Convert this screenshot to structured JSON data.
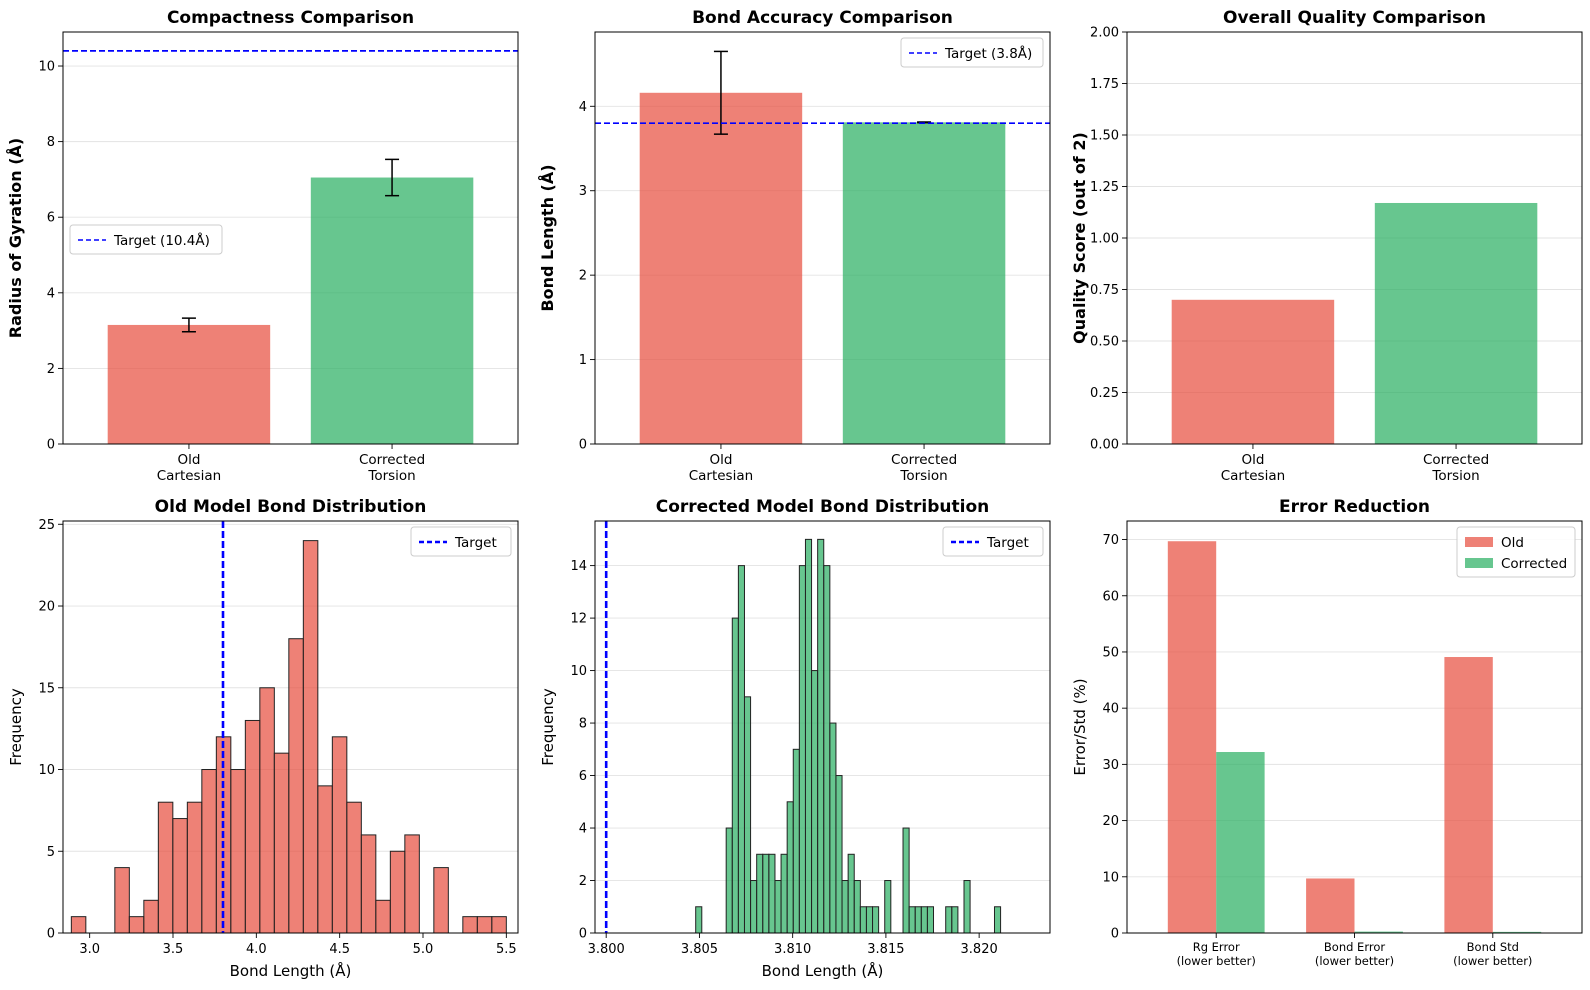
{
  "colors": {
    "old": "#e74c3c",
    "corrected": "#27ae60",
    "target": "#0000ff"
  },
  "chart_data": [
    {
      "id": "compactness",
      "type": "bar",
      "title": "Compactness Comparison",
      "ylabel": "Radius of Gyration (Å)",
      "xlabel": "",
      "categories": [
        [
          "Old",
          "Cartesian"
        ],
        [
          "Corrected",
          "Torsion"
        ]
      ],
      "values": [
        3.15,
        7.05
      ],
      "errors": [
        0.18,
        0.48
      ],
      "ylim": [
        0,
        10.9
      ],
      "yticks": [
        0,
        2,
        4,
        6,
        8,
        10
      ],
      "target": {
        "value": 10.4,
        "label": "Target (10.4Å)"
      },
      "legend": "center-left"
    },
    {
      "id": "bond-accuracy",
      "type": "bar",
      "title": "Bond Accuracy Comparison",
      "ylabel": "Bond Length (Å)",
      "xlabel": "",
      "categories": [
        [
          "Old",
          "Cartesian"
        ],
        [
          "Corrected",
          "Torsion"
        ]
      ],
      "values": [
        4.16,
        3.81
      ],
      "errors": [
        0.49,
        0.004
      ],
      "ylim": [
        0,
        4.88
      ],
      "yticks": [
        0,
        1,
        2,
        3,
        4
      ],
      "target": {
        "value": 3.8,
        "label": "Target (3.8Å)"
      },
      "legend": "top-right"
    },
    {
      "id": "quality",
      "type": "bar",
      "title": "Overall Quality Comparison",
      "ylabel": "Quality Score (out of 2)",
      "xlabel": "",
      "categories": [
        [
          "Old",
          "Cartesian"
        ],
        [
          "Corrected",
          "Torsion"
        ]
      ],
      "values": [
        0.7,
        1.17
      ],
      "ylim": [
        0,
        2.0
      ],
      "yticks": [
        "0.00",
        "0.25",
        "0.50",
        "0.75",
        "1.00",
        "1.25",
        "1.50",
        "1.75",
        "2.00"
      ]
    },
    {
      "id": "old-hist",
      "type": "histogram",
      "title": "Old Model Bond Distribution",
      "xlabel": "Bond Length (Å)",
      "ylabel": "Frequency",
      "bin_start": 2.89,
      "bin_width": 0.087,
      "counts": [
        1,
        0,
        0,
        4,
        1,
        2,
        8,
        7,
        8,
        10,
        12,
        10,
        13,
        15,
        11,
        18,
        24,
        9,
        12,
        8,
        6,
        2,
        5,
        6,
        0,
        4,
        0,
        1,
        1,
        1
      ],
      "xlim": [
        2.84,
        5.57
      ],
      "ylim": [
        0,
        25.2
      ],
      "xticks": [
        "3.0",
        "3.5",
        "4.0",
        "4.5",
        "5.0",
        "5.5"
      ],
      "yticks": [
        0,
        5,
        10,
        15,
        20,
        25
      ],
      "target": {
        "value": 3.8,
        "label": "Target"
      }
    },
    {
      "id": "corrected-hist",
      "type": "histogram",
      "title": "Corrected Model Bond Distribution",
      "xlabel": "Bond Length (Å)",
      "ylabel": "Frequency",
      "bin_start": 3.8048,
      "bin_width": 0.000327,
      "counts": [
        1,
        0,
        0,
        0,
        0,
        4,
        12,
        14,
        9,
        2,
        3,
        3,
        3,
        2,
        3,
        5,
        7,
        14,
        15,
        10,
        15,
        14,
        8,
        6,
        2,
        3,
        2,
        1,
        1,
        1,
        0,
        2,
        0,
        0,
        4,
        1,
        1,
        1,
        1,
        0,
        0,
        1,
        1,
        0,
        2,
        0,
        0,
        0,
        0,
        1
      ],
      "xlim": [
        3.7994,
        3.8238
      ],
      "ylim": [
        0,
        15.7
      ],
      "xticks": [
        "3.800",
        "3.805",
        "3.810",
        "3.815",
        "3.820"
      ],
      "yticks": [
        0,
        2,
        4,
        6,
        8,
        10,
        12,
        14
      ],
      "target": {
        "value": 3.8,
        "label": "Target"
      }
    },
    {
      "id": "error-reduction",
      "type": "bar",
      "title": "Error Reduction",
      "ylabel": "Error/Std (%)",
      "xlabel": "",
      "categories": [
        [
          "Rg Error",
          "(lower better)"
        ],
        [
          "Bond Error",
          "(lower better)"
        ],
        [
          "Bond Std",
          "(lower better)"
        ]
      ],
      "series": [
        {
          "name": "Old",
          "values": [
            69.7,
            9.7,
            49.1
          ]
        },
        {
          "name": "Corrected",
          "values": [
            32.2,
            0.25,
            0.2
          ]
        }
      ],
      "ylim": [
        0,
        73.3
      ],
      "yticks": [
        0,
        10,
        20,
        30,
        40,
        50,
        60,
        70
      ],
      "legend": "top-right"
    }
  ]
}
